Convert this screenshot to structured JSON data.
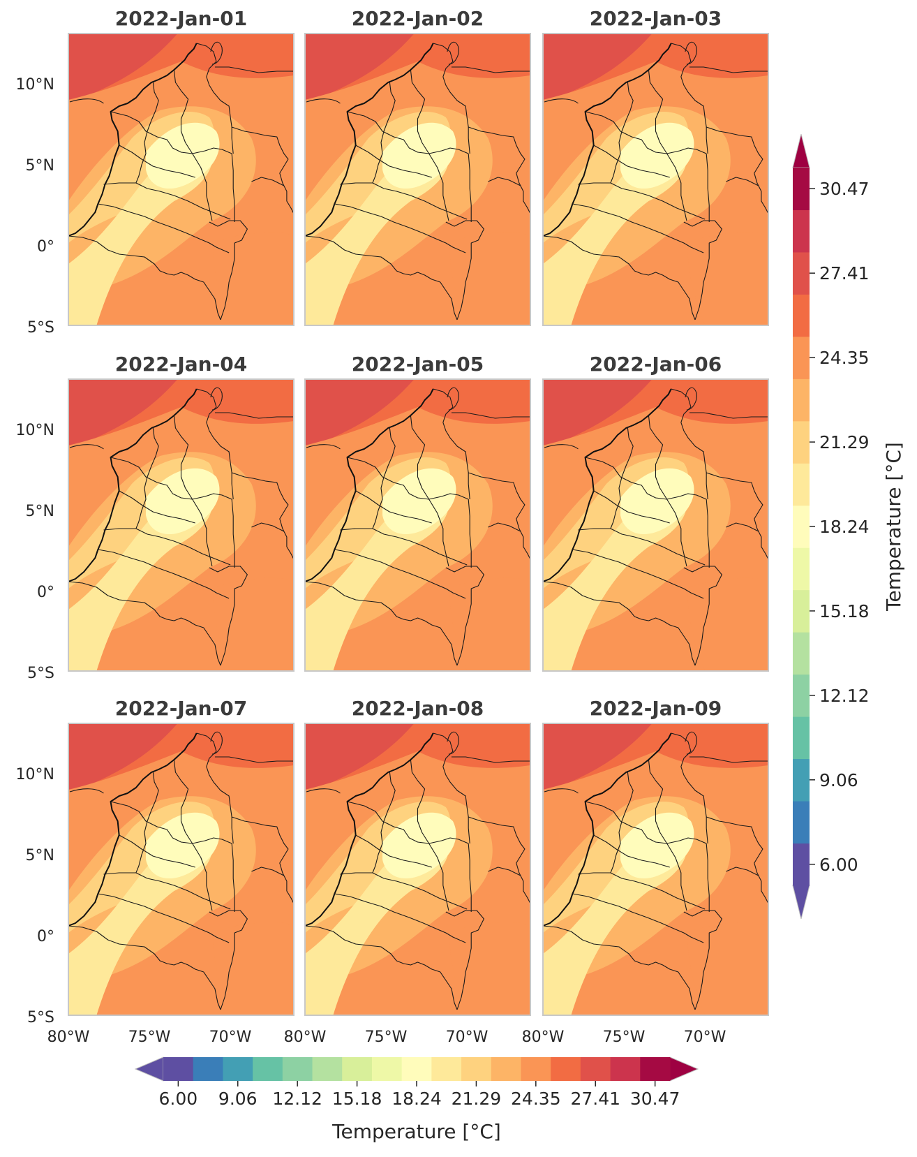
{
  "panels": [
    {
      "title": "2022-Jan-01"
    },
    {
      "title": "2022-Jan-02"
    },
    {
      "title": "2022-Jan-03"
    },
    {
      "title": "2022-Jan-04"
    },
    {
      "title": "2022-Jan-05"
    },
    {
      "title": "2022-Jan-06"
    },
    {
      "title": "2022-Jan-07"
    },
    {
      "title": "2022-Jan-08"
    },
    {
      "title": "2022-Jan-09"
    }
  ],
  "lat_ticks": [
    "10°N",
    "5°N",
    "0°",
    "5°S"
  ],
  "lon_ticks": [
    "80°W",
    "75°W",
    "70°W"
  ],
  "colorbar": {
    "label": "Temperature [°C]",
    "ticks": [
      "6.00",
      "9.06",
      "12.12",
      "15.18",
      "18.24",
      "21.29",
      "24.35",
      "27.41",
      "30.47"
    ],
    "colors": [
      "#5e4fa2",
      "#3a7eb8",
      "#439fb4",
      "#66c2a5",
      "#8dd1a3",
      "#b4e1a0",
      "#d8ef9a",
      "#eef8a7",
      "#fffcbb",
      "#fee99a",
      "#fed27f",
      "#fdb466",
      "#fa9555",
      "#f26c43",
      "#e0514a",
      "#cc344d",
      "#a50a43"
    ],
    "under_color": "#5e4fa2",
    "over_color": "#9e0142"
  }
}
